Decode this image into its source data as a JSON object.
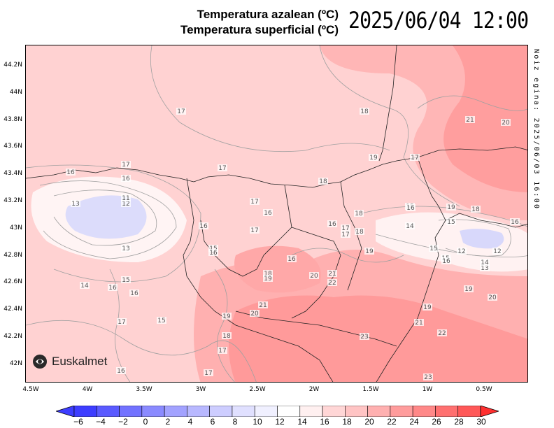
{
  "title": {
    "line1": "Temperatura azalean (ºC)",
    "line2": "Temperatura superficial (ºC)",
    "datetime": "2025/06/04 12:00",
    "run_note": "Noiz egina: 2025/06/03 16:00"
  },
  "map": {
    "lat_labels": [
      "44.2N",
      "44N",
      "43.8N",
      "43.6N",
      "43.4N",
      "43.2N",
      "43N",
      "42.8N",
      "42.6N",
      "42.4N",
      "42.2N",
      "42N"
    ],
    "lon_labels": [
      "4.5W",
      "4W",
      "3.5W",
      "3W",
      "2.5W",
      "2W",
      "1.5W",
      "1W",
      "0.5W"
    ],
    "contour_labels": [
      {
        "t": "17"
      },
      {
        "t": "18"
      },
      {
        "t": "21"
      },
      {
        "t": "20"
      },
      {
        "t": "19"
      },
      {
        "t": "17"
      },
      {
        "t": "16"
      },
      {
        "t": "17"
      },
      {
        "t": "17"
      },
      {
        "t": "18"
      },
      {
        "t": "16"
      },
      {
        "t": "13"
      },
      {
        "t": "12"
      },
      {
        "t": "11"
      },
      {
        "t": "13"
      },
      {
        "t": "17"
      },
      {
        "t": "16"
      },
      {
        "t": "16"
      },
      {
        "t": "17"
      },
      {
        "t": "18"
      },
      {
        "t": "17"
      },
      {
        "t": "16"
      },
      {
        "t": "14"
      },
      {
        "t": "15"
      },
      {
        "t": "19"
      },
      {
        "t": "18"
      },
      {
        "t": "16"
      },
      {
        "t": "15"
      },
      {
        "t": "12"
      },
      {
        "t": "12"
      },
      {
        "t": "18"
      },
      {
        "t": "17"
      },
      {
        "t": "16"
      },
      {
        "t": "13"
      },
      {
        "t": "15"
      },
      {
        "t": "14"
      },
      {
        "t": "15"
      },
      {
        "t": "16"
      },
      {
        "t": "15"
      },
      {
        "t": "16"
      },
      {
        "t": "16"
      },
      {
        "t": "18"
      },
      {
        "t": "19"
      },
      {
        "t": "20"
      },
      {
        "t": "21"
      },
      {
        "t": "22"
      },
      {
        "t": "19"
      },
      {
        "t": "19"
      },
      {
        "t": "20"
      },
      {
        "t": "14"
      },
      {
        "t": "16"
      },
      {
        "t": "15"
      },
      {
        "t": "16"
      },
      {
        "t": "17"
      },
      {
        "t": "15"
      },
      {
        "t": "21"
      },
      {
        "t": "20"
      },
      {
        "t": "19"
      },
      {
        "t": "18"
      },
      {
        "t": "17"
      },
      {
        "t": "17"
      },
      {
        "t": "16"
      },
      {
        "t": "19"
      },
      {
        "t": "21"
      },
      {
        "t": "22"
      },
      {
        "t": "23"
      },
      {
        "t": "23"
      }
    ]
  },
  "colorbar": {
    "ticks": [
      "−6",
      "−4",
      "−2",
      "0",
      "2",
      "4",
      "6",
      "8",
      "10",
      "12",
      "14",
      "16",
      "18",
      "20",
      "22",
      "24",
      "26",
      "28",
      "30"
    ],
    "colors": [
      "#3d3dff",
      "#5a5aff",
      "#7272ff",
      "#8a8aff",
      "#a2a2ff",
      "#b8b8ff",
      "#cdcdff",
      "#e0e0ff",
      "#f0f0ff",
      "#ffffff",
      "#fff0f0",
      "#ffd6d6",
      "#ffc4c4",
      "#ffb0b0",
      "#ff9c9c",
      "#ff8888",
      "#ff7070",
      "#ff5858",
      "#ff3030"
    ]
  },
  "logo": {
    "text": "Euskalmet"
  },
  "colors": {
    "low": "#dcdcff",
    "base": "#ffd0d0",
    "warm": "#ff9a9a",
    "hot": "#ff7a7a"
  }
}
